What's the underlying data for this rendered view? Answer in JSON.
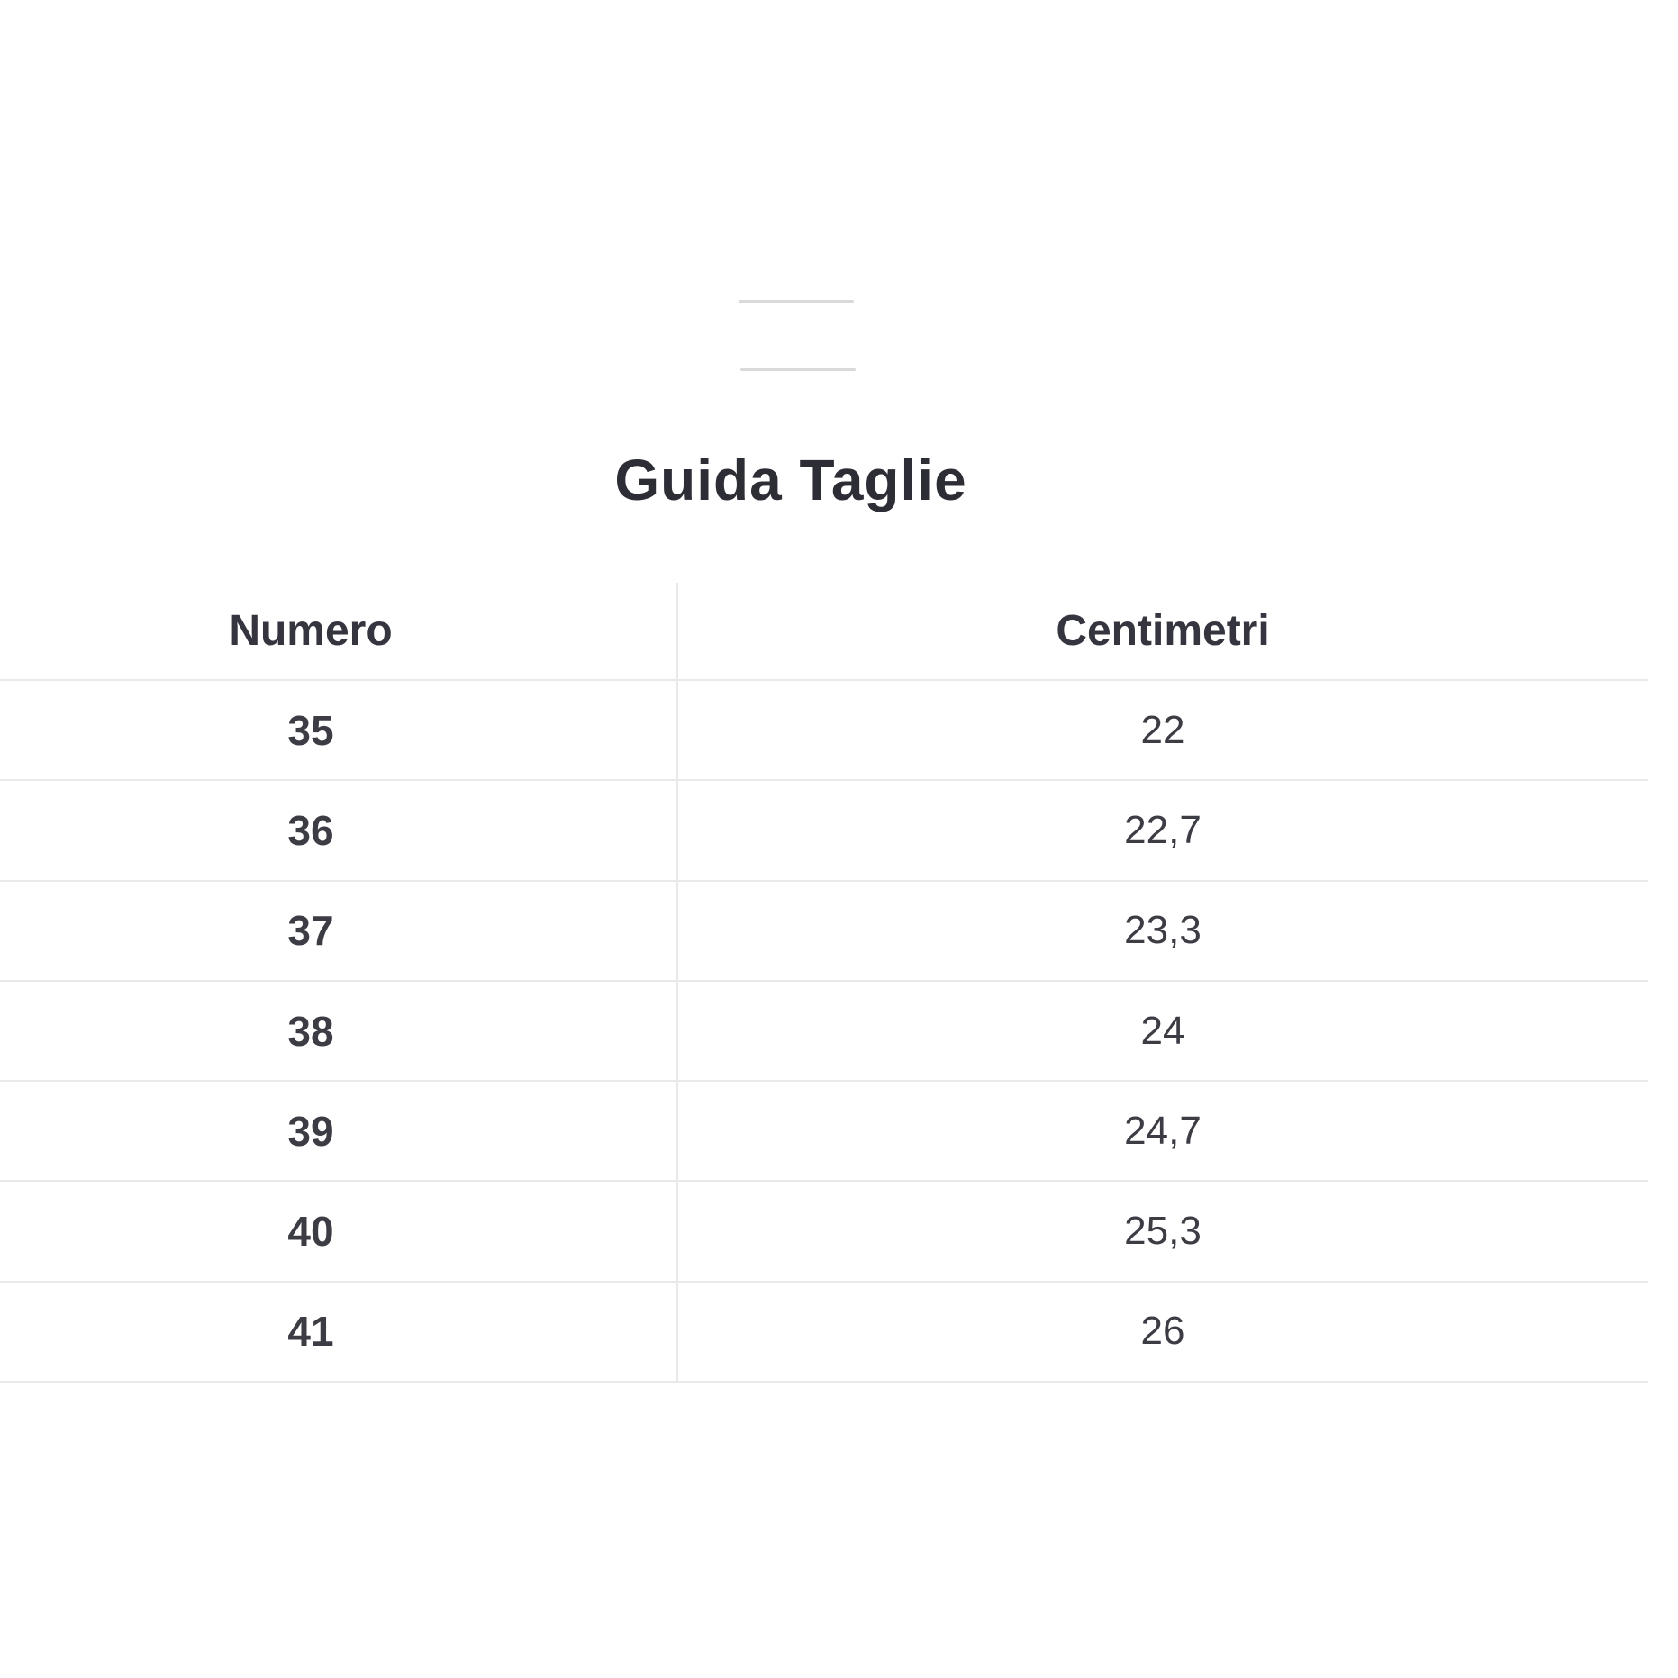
{
  "page": {
    "title": "Guida Taglie"
  },
  "table": {
    "columns": {
      "numero_label": "Numero",
      "centimetri_label": "Centimetri"
    },
    "rows": [
      {
        "numero": "35",
        "centimetri": "22"
      },
      {
        "numero": "36",
        "centimetri": "22,7"
      },
      {
        "numero": "37",
        "centimetri": "23,3"
      },
      {
        "numero": "38",
        "centimetri": "24"
      },
      {
        "numero": "39",
        "centimetri": "24,7"
      },
      {
        "numero": "40",
        "centimetri": "25,3"
      },
      {
        "numero": "41",
        "centimetri": "26"
      }
    ]
  },
  "colors": {
    "background": "#ffffff",
    "title-text": "#2d2d36",
    "header-text": "#35353f",
    "cell-text": "#3c3c44",
    "line-gray": "#e9e9eb",
    "handle-gray": "#d9d9d9"
  }
}
